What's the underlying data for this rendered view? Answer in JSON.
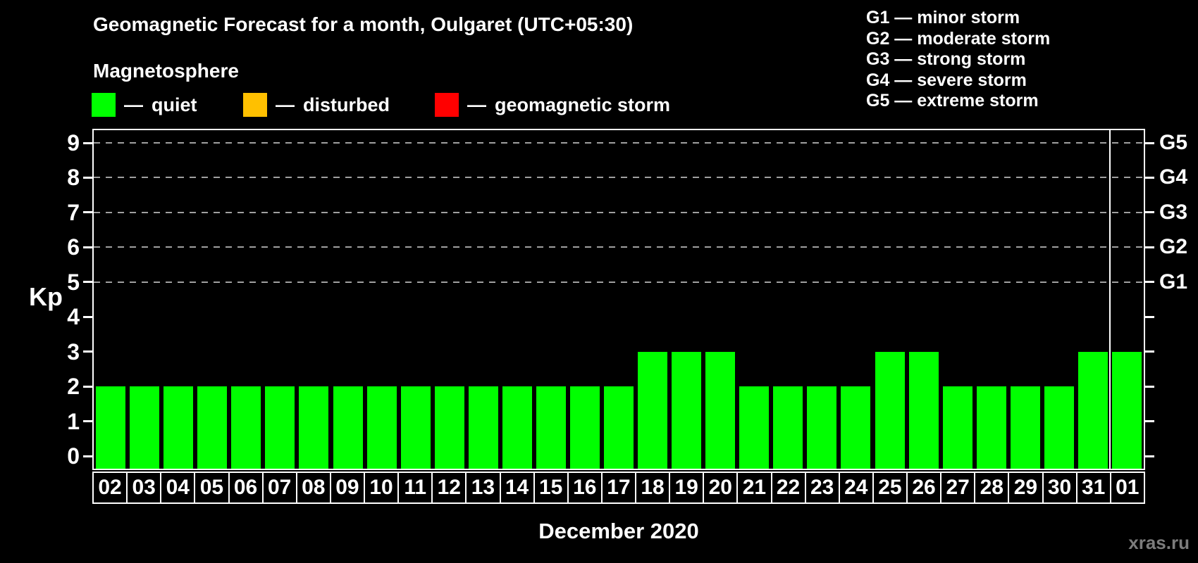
{
  "title": "Geomagnetic Forecast for a month, Oulgaret (UTC+05:30)",
  "legend": {
    "heading": "Magnetosphere",
    "separator": "—",
    "items": [
      {
        "name": "quiet",
        "label": "quiet",
        "color": "#00ff00"
      },
      {
        "name": "disturbed",
        "label": "disturbed",
        "color": "#ffc000"
      },
      {
        "name": "geomagnetic-storm",
        "label": "geomagnetic storm",
        "color": "#ff0000"
      }
    ]
  },
  "storm_scale_legend": [
    "G1 — minor storm",
    "G2 — moderate storm",
    "G3 — strong storm",
    "G4 — severe storm",
    "G5 — extreme storm"
  ],
  "watermark": "xras.ru",
  "chart_data": {
    "type": "bar",
    "title": "Geomagnetic Forecast for a month, Oulgaret (UTC+05:30)",
    "categories": [
      "02",
      "03",
      "04",
      "05",
      "06",
      "07",
      "08",
      "09",
      "10",
      "11",
      "12",
      "13",
      "14",
      "15",
      "16",
      "17",
      "18",
      "19",
      "20",
      "21",
      "22",
      "23",
      "24",
      "25",
      "26",
      "27",
      "28",
      "29",
      "30",
      "31",
      "01"
    ],
    "values": [
      2,
      2,
      2,
      2,
      2,
      2,
      2,
      2,
      2,
      2,
      2,
      2,
      2,
      2,
      2,
      2,
      3,
      3,
      3,
      2,
      2,
      2,
      2,
      3,
      3,
      2,
      2,
      2,
      2,
      3,
      3
    ],
    "bar_color": "#00ff00",
    "ylabel": "Kp",
    "xlabel": "December 2020",
    "ylim": [
      0,
      9
    ],
    "yticks": [
      0,
      1,
      2,
      3,
      4,
      5,
      6,
      7,
      8,
      9
    ],
    "gridline_levels": [
      5,
      6,
      7,
      8,
      9
    ],
    "right_axis_labels": [
      {
        "kp": 5,
        "label": "G1"
      },
      {
        "kp": 6,
        "label": "G2"
      },
      {
        "kp": 7,
        "label": "G3"
      },
      {
        "kp": 8,
        "label": "G4"
      },
      {
        "kp": 9,
        "label": "G5"
      }
    ],
    "month_separator_after_index": 29,
    "grid": "dashed-horizontal",
    "legend_position": "top-left"
  }
}
